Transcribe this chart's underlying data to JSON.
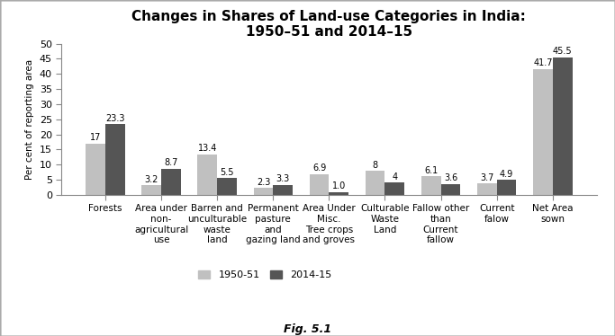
{
  "title_line1": "Changes in Shares of Land-use Categories in India:",
  "title_line2": "1950–51 and 2014–15",
  "ylabel": "Per cent of reporting area",
  "xlabel_caption": "Fig. 5.1",
  "categories": [
    "Forests",
    "Area under\nnon-\nagricultural\nuse",
    "Barren and\nunculturable\nwaste\nland",
    "Permanent\npasture\nand\ngazing land",
    "Area Under\nMisc.\nTree crops\nand groves",
    "Culturable\nWaste\nLand",
    "Fallow other\nthan\nCurrent\nfallow",
    "Current\nfaIow",
    "Net Area\nsown"
  ],
  "values_1950": [
    17,
    3.2,
    13.4,
    2.3,
    6.9,
    8,
    6.1,
    3.7,
    41.7
  ],
  "values_2014": [
    23.3,
    8.7,
    5.5,
    3.3,
    1.0,
    4,
    3.6,
    4.9,
    45.5
  ],
  "labels_1950": [
    "17",
    "3.2",
    "13.4",
    "2.3",
    "6.9",
    "8",
    "6.1",
    "3.7",
    "41.7"
  ],
  "labels_2014": [
    "23.3",
    "8.7",
    "5.5",
    "3.3",
    "1.0",
    "4",
    "3.6",
    "4.9",
    "45.5"
  ],
  "color_1950": "#c0c0c0",
  "color_2014": "#555555",
  "ylim": [
    0,
    50
  ],
  "yticks": [
    0,
    5,
    10,
    15,
    20,
    25,
    30,
    35,
    40,
    45,
    50
  ],
  "legend_1950": "1950-51",
  "legend_2014": "2014-15",
  "bar_width": 0.35,
  "background_color": "#ffffff",
  "figure_background": "#ffffff",
  "title_fontsize": 11,
  "label_fontsize": 7.5,
  "tick_fontsize": 8,
  "value_fontsize": 7
}
